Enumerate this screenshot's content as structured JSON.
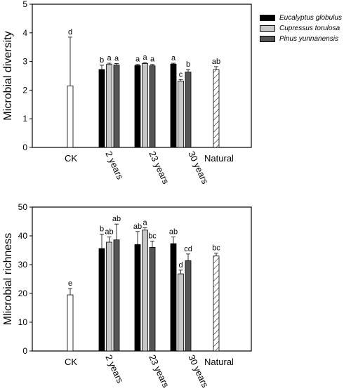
{
  "legend": [
    {
      "name": "Eucalyptus globulus",
      "color": "#000000"
    },
    {
      "name": "Cupressus torulosa",
      "color": "#c8c8c8"
    },
    {
      "name": "Pinus yunnanensis",
      "color": "#555555"
    }
  ],
  "chart_data": [
    {
      "type": "bar",
      "ylabel": "Microbial diversity",
      "xlabel": "",
      "ylim": [
        0,
        5
      ],
      "yticks": [
        0,
        1,
        2,
        3,
        4,
        5
      ],
      "categories": [
        "CK",
        "2 years",
        "23 years",
        "30 years",
        "Natural"
      ],
      "groups": [
        {
          "category": "CK",
          "bars": [
            {
              "series": "CK",
              "value": 2.15,
              "error": 1.7,
              "letter": "d",
              "fill": "#ffffff"
            }
          ]
        },
        {
          "category": "2 years",
          "bars": [
            {
              "series": "Eucalyptus globulus",
              "value": 2.72,
              "error": 0.15,
              "letter": "b"
            },
            {
              "series": "Cupressus torulosa",
              "value": 2.9,
              "error": 0.04,
              "letter": "a"
            },
            {
              "series": "Pinus yunnanensis",
              "value": 2.88,
              "error": 0.05,
              "letter": "a"
            }
          ]
        },
        {
          "category": "23 years",
          "bars": [
            {
              "series": "Eucalyptus globulus",
              "value": 2.86,
              "error": 0.04,
              "letter": "a"
            },
            {
              "series": "Cupressus torulosa",
              "value": 2.93,
              "error": 0.03,
              "letter": "a"
            },
            {
              "series": "Pinus yunnanensis",
              "value": 2.85,
              "error": 0.05,
              "letter": "a"
            }
          ]
        },
        {
          "category": "30 years",
          "bars": [
            {
              "series": "Eucalyptus globulus",
              "value": 2.91,
              "error": 0.03,
              "letter": "a"
            },
            {
              "series": "Cupressus torulosa",
              "value": 2.32,
              "error": 0.05,
              "letter": "c"
            },
            {
              "series": "Pinus yunnanensis",
              "value": 2.63,
              "error": 0.09,
              "letter": "b"
            }
          ]
        },
        {
          "category": "Natural",
          "bars": [
            {
              "series": "Natural",
              "value": 2.72,
              "error": 0.1,
              "letter": "ab",
              "fill": "hatch"
            }
          ]
        }
      ]
    },
    {
      "type": "bar",
      "ylabel": "Mlicrobial richness",
      "xlabel": "",
      "ylim": [
        0,
        50
      ],
      "yticks": [
        0,
        10,
        20,
        30,
        40,
        50
      ],
      "categories": [
        "CK",
        "2 years",
        "23 years",
        "30 years",
        "Natural"
      ],
      "groups": [
        {
          "category": "CK",
          "bars": [
            {
              "series": "CK",
              "value": 19.5,
              "error": 2.2,
              "letter": "e",
              "fill": "#ffffff"
            }
          ]
        },
        {
          "category": "2 years",
          "bars": [
            {
              "series": "Eucalyptus globulus",
              "value": 35.6,
              "error": 5.0,
              "letter": "b"
            },
            {
              "series": "Cupressus torulosa",
              "value": 37.8,
              "error": 1.8,
              "letter": "ab"
            },
            {
              "series": "Pinus yunnanensis",
              "value": 38.6,
              "error": 5.5,
              "letter": "ab"
            }
          ]
        },
        {
          "category": "23 years",
          "bars": [
            {
              "series": "Eucalyptus globulus",
              "value": 37.0,
              "error": 4.5,
              "letter": "ab"
            },
            {
              "series": "Cupressus torulosa",
              "value": 42.0,
              "error": 0.8,
              "letter": "a"
            },
            {
              "series": "Pinus yunnanensis",
              "value": 36.0,
              "error": 2.2,
              "letter": "bc"
            }
          ]
        },
        {
          "category": "30 years",
          "bars": [
            {
              "series": "Eucalyptus globulus",
              "value": 37.3,
              "error": 2.3,
              "letter": "ab"
            },
            {
              "series": "Cupressus torulosa",
              "value": 26.8,
              "error": 1.3,
              "letter": "d"
            },
            {
              "series": "Pinus yunnanensis",
              "value": 31.4,
              "error": 2.3,
              "letter": "cd"
            }
          ]
        },
        {
          "category": "Natural",
          "bars": [
            {
              "series": "Natural",
              "value": 33.0,
              "error": 1.0,
              "letter": "bc",
              "fill": "hatch"
            }
          ]
        }
      ]
    }
  ]
}
